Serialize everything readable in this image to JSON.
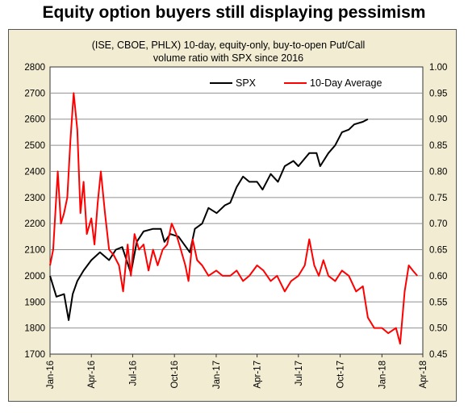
{
  "headline": "Equity option buyers still displaying pessimism",
  "chart_data": {
    "type": "line",
    "title_lines": [
      "(ISE, CBOE, PHLX) 10-day, equity-only, buy-to-open Put/Call",
      "volume ratio with SPX since 2016"
    ],
    "x_tick_labels": [
      "Jan-16",
      "Apr-16",
      "Jul-16",
      "Oct-16",
      "Jan-17",
      "Apr-17",
      "Jul-17",
      "Oct-17",
      "Jan-18",
      "Apr-18"
    ],
    "x_range": [
      "2016-01-01",
      "2018-04-01"
    ],
    "y_left": {
      "ticks": [
        1700,
        1800,
        1900,
        2000,
        2100,
        2200,
        2300,
        2400,
        2500,
        2600,
        2700,
        2800
      ],
      "ylim": [
        1700,
        2800
      ]
    },
    "y_right": {
      "ticks": [
        "0.45",
        "0.50",
        "0.55",
        "0.60",
        "0.65",
        "0.70",
        "0.75",
        "0.80",
        "0.85",
        "0.90",
        "0.95",
        "1.00"
      ],
      "ylim": [
        0.45,
        1.0
      ]
    },
    "grid": true,
    "legend_position": "top-right",
    "colors": {
      "spx": "#000000",
      "avg": "#ff0000",
      "background": "#f2ecd2",
      "grid": "#909090"
    },
    "series": [
      {
        "name": "SPX",
        "axis": "left",
        "x": [
          "2016-01-01",
          "2016-01-15",
          "2016-02-01",
          "2016-02-11",
          "2016-02-20",
          "2016-03-01",
          "2016-03-15",
          "2016-04-01",
          "2016-04-20",
          "2016-05-10",
          "2016-05-25",
          "2016-06-08",
          "2016-06-27",
          "2016-07-10",
          "2016-07-25",
          "2016-08-15",
          "2016-09-01",
          "2016-09-09",
          "2016-09-22",
          "2016-10-10",
          "2016-11-04",
          "2016-11-15",
          "2016-12-01",
          "2016-12-15",
          "2017-01-02",
          "2017-01-20",
          "2017-02-01",
          "2017-02-15",
          "2017-03-01",
          "2017-03-15",
          "2017-04-01",
          "2017-04-13",
          "2017-05-01",
          "2017-05-17",
          "2017-06-01",
          "2017-06-20",
          "2017-07-01",
          "2017-07-25",
          "2017-08-10",
          "2017-08-18",
          "2017-09-05",
          "2017-09-20",
          "2017-10-05",
          "2017-10-20",
          "2017-11-01",
          "2017-11-20",
          "2017-12-01"
        ],
        "values": [
          2000,
          1920,
          1930,
          1830,
          1930,
          1980,
          2020,
          2060,
          2090,
          2060,
          2100,
          2110,
          2010,
          2130,
          2170,
          2180,
          2180,
          2130,
          2160,
          2150,
          2090,
          2180,
          2200,
          2260,
          2240,
          2270,
          2280,
          2340,
          2380,
          2360,
          2360,
          2330,
          2390,
          2360,
          2420,
          2440,
          2420,
          2470,
          2470,
          2420,
          2470,
          2500,
          2550,
          2560,
          2580,
          2590,
          2600
        ]
      },
      {
        "name": "10-Day Average",
        "axis": "right",
        "x": [
          "2016-01-01",
          "2016-01-08",
          "2016-01-18",
          "2016-01-25",
          "2016-02-01",
          "2016-02-08",
          "2016-02-15",
          "2016-02-22",
          "2016-03-01",
          "2016-03-08",
          "2016-03-15",
          "2016-03-22",
          "2016-04-01",
          "2016-04-08",
          "2016-04-15",
          "2016-04-22",
          "2016-05-01",
          "2016-05-10",
          "2016-05-20",
          "2016-06-01",
          "2016-06-10",
          "2016-06-20",
          "2016-06-27",
          "2016-07-05",
          "2016-07-15",
          "2016-07-25",
          "2016-08-05",
          "2016-08-15",
          "2016-08-25",
          "2016-09-05",
          "2016-09-15",
          "2016-09-25",
          "2016-10-05",
          "2016-10-15",
          "2016-10-25",
          "2016-11-01",
          "2016-11-10",
          "2016-11-20",
          "2016-12-01",
          "2016-12-15",
          "2017-01-01",
          "2017-01-15",
          "2017-02-01",
          "2017-02-15",
          "2017-03-01",
          "2017-03-15",
          "2017-04-01",
          "2017-04-15",
          "2017-05-01",
          "2017-05-15",
          "2017-06-01",
          "2017-06-15",
          "2017-07-01",
          "2017-07-15",
          "2017-07-25",
          "2017-08-05",
          "2017-08-15",
          "2017-08-25",
          "2017-09-05",
          "2017-09-20",
          "2017-10-05",
          "2017-10-20",
          "2017-11-05",
          "2017-11-20",
          "2017-12-01",
          "2017-12-15",
          "2018-01-01",
          "2018-01-15",
          "2018-02-01",
          "2018-02-10",
          "2018-02-20",
          "2018-03-01",
          "2018-03-10",
          "2018-03-20"
        ],
        "values": [
          0.62,
          0.65,
          0.8,
          0.7,
          0.72,
          0.75,
          0.86,
          0.95,
          0.88,
          0.72,
          0.78,
          0.68,
          0.71,
          0.66,
          0.74,
          0.8,
          0.72,
          0.65,
          0.64,
          0.62,
          0.57,
          0.66,
          0.6,
          0.68,
          0.65,
          0.66,
          0.61,
          0.65,
          0.62,
          0.65,
          0.66,
          0.7,
          0.68,
          0.65,
          0.62,
          0.59,
          0.67,
          0.63,
          0.62,
          0.6,
          0.61,
          0.6,
          0.6,
          0.61,
          0.59,
          0.6,
          0.62,
          0.61,
          0.59,
          0.6,
          0.57,
          0.59,
          0.6,
          0.62,
          0.67,
          0.62,
          0.6,
          0.63,
          0.6,
          0.59,
          0.61,
          0.6,
          0.57,
          0.58,
          0.52,
          0.5,
          0.5,
          0.49,
          0.5,
          0.47,
          0.57,
          0.62,
          0.61,
          0.6
        ]
      }
    ]
  }
}
